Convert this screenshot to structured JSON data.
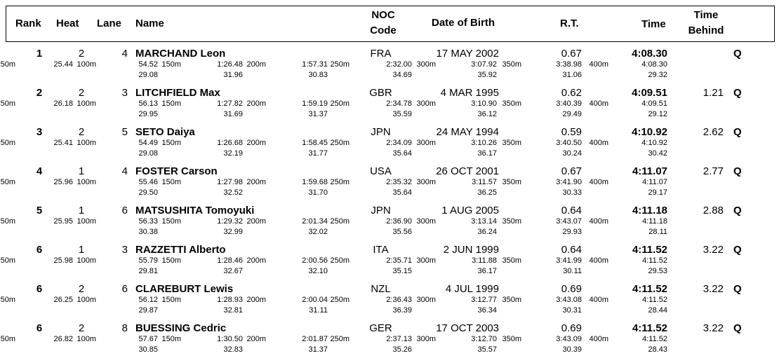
{
  "header": {
    "rank": "Rank",
    "heat": "Heat",
    "lane": "Lane",
    "name": "Name",
    "noc1": "NOC",
    "noc2": "Code",
    "dob": "Date of Birth",
    "rt": "R.T.",
    "time": "Time",
    "behind1": "Time",
    "behind2": "Behind"
  },
  "rows": [
    {
      "rank": "1",
      "heat": "2",
      "lane": "4",
      "name": "MARCHAND Leon",
      "noc": "FRA",
      "dob": "17 MAY 2002",
      "rt": "0.67",
      "time": "4:08.30",
      "behind": "",
      "q": "Q",
      "splits": [
        {
          "d": "50m",
          "t": "25.44",
          "i": ""
        },
        {
          "d": "100m",
          "t": "54.52",
          "i": "29.08"
        },
        {
          "d": "150m",
          "t": "1:26.48",
          "i": "31.96"
        },
        {
          "d": "200m",
          "t": "1:57.31",
          "i": "30.83"
        },
        {
          "d": "250m",
          "t": "2:32.00",
          "i": "34.69"
        },
        {
          "d": "300m",
          "t": "3:07.92",
          "i": "35.92"
        },
        {
          "d": "350m",
          "t": "3:38.98",
          "i": "31.06"
        },
        {
          "d": "400m",
          "t": "4:08.30",
          "i": "29.32"
        }
      ]
    },
    {
      "rank": "2",
      "heat": "2",
      "lane": "3",
      "name": "LITCHFIELD Max",
      "noc": "GBR",
      "dob": "4 MAR 1995",
      "rt": "0.62",
      "time": "4:09.51",
      "behind": "1.21",
      "q": "Q",
      "splits": [
        {
          "d": "50m",
          "t": "26.18",
          "i": ""
        },
        {
          "d": "100m",
          "t": "56.13",
          "i": "29.95"
        },
        {
          "d": "150m",
          "t": "1:27.82",
          "i": "31.69"
        },
        {
          "d": "200m",
          "t": "1:59.19",
          "i": "31.37"
        },
        {
          "d": "250m",
          "t": "2:34.78",
          "i": "35.59"
        },
        {
          "d": "300m",
          "t": "3:10.90",
          "i": "36.12"
        },
        {
          "d": "350m",
          "t": "3:40.39",
          "i": "29.49"
        },
        {
          "d": "400m",
          "t": "4:09.51",
          "i": "29.12"
        }
      ]
    },
    {
      "rank": "3",
      "heat": "2",
      "lane": "5",
      "name": "SETO Daiya",
      "noc": "JPN",
      "dob": "24 MAY 1994",
      "rt": "0.59",
      "time": "4:10.92",
      "behind": "2.62",
      "q": "Q",
      "splits": [
        {
          "d": "50m",
          "t": "25.41",
          "i": ""
        },
        {
          "d": "100m",
          "t": "54.49",
          "i": "29.08"
        },
        {
          "d": "150m",
          "t": "1:26.68",
          "i": "32.19"
        },
        {
          "d": "200m",
          "t": "1:58.45",
          "i": "31.77"
        },
        {
          "d": "250m",
          "t": "2:34.09",
          "i": "35.64"
        },
        {
          "d": "300m",
          "t": "3:10.26",
          "i": "36.17"
        },
        {
          "d": "350m",
          "t": "3:40.50",
          "i": "30.24"
        },
        {
          "d": "400m",
          "t": "4:10.92",
          "i": "30.42"
        }
      ]
    },
    {
      "rank": "4",
      "heat": "1",
      "lane": "4",
      "name": "FOSTER Carson",
      "noc": "USA",
      "dob": "26 OCT 2001",
      "rt": "0.67",
      "time": "4:11.07",
      "behind": "2.77",
      "q": "Q",
      "splits": [
        {
          "d": "50m",
          "t": "25.96",
          "i": ""
        },
        {
          "d": "100m",
          "t": "55.46",
          "i": "29.50"
        },
        {
          "d": "150m",
          "t": "1:27.98",
          "i": "32.52"
        },
        {
          "d": "200m",
          "t": "1:59.68",
          "i": "31.70"
        },
        {
          "d": "250m",
          "t": "2:35.32",
          "i": "35.64"
        },
        {
          "d": "300m",
          "t": "3:11.57",
          "i": "36.25"
        },
        {
          "d": "350m",
          "t": "3:41.90",
          "i": "30.33"
        },
        {
          "d": "400m",
          "t": "4:11.07",
          "i": "29.17"
        }
      ]
    },
    {
      "rank": "5",
      "heat": "1",
      "lane": "6",
      "name": "MATSUSHITA Tomoyuki",
      "noc": "JPN",
      "dob": "1 AUG 2005",
      "rt": "0.64",
      "time": "4:11.18",
      "behind": "2.88",
      "q": "Q",
      "splits": [
        {
          "d": "50m",
          "t": "25.95",
          "i": ""
        },
        {
          "d": "100m",
          "t": "56.33",
          "i": "30.38"
        },
        {
          "d": "150m",
          "t": "1:29.32",
          "i": "32.99"
        },
        {
          "d": "200m",
          "t": "2:01.34",
          "i": "32.02"
        },
        {
          "d": "250m",
          "t": "2:36.90",
          "i": "35.56"
        },
        {
          "d": "300m",
          "t": "3:13.14",
          "i": "36.24"
        },
        {
          "d": "350m",
          "t": "3:43.07",
          "i": "29.93"
        },
        {
          "d": "400m",
          "t": "4:11.18",
          "i": "28.11"
        }
      ]
    },
    {
      "rank": "6",
      "heat": "1",
      "lane": "3",
      "name": "RAZZETTI Alberto",
      "noc": "ITA",
      "dob": "2 JUN 1999",
      "rt": "0.64",
      "time": "4:11.52",
      "behind": "3.22",
      "q": "Q",
      "splits": [
        {
          "d": "50m",
          "t": "25.98",
          "i": ""
        },
        {
          "d": "100m",
          "t": "55.79",
          "i": "29.81"
        },
        {
          "d": "150m",
          "t": "1:28.46",
          "i": "32.67"
        },
        {
          "d": "200m",
          "t": "2:00.56",
          "i": "32.10"
        },
        {
          "d": "250m",
          "t": "2:35.71",
          "i": "35.15"
        },
        {
          "d": "300m",
          "t": "3:11.88",
          "i": "36.17"
        },
        {
          "d": "350m",
          "t": "3:41.99",
          "i": "30.11"
        },
        {
          "d": "400m",
          "t": "4:11.52",
          "i": "29.53"
        }
      ]
    },
    {
      "rank": "6",
      "heat": "2",
      "lane": "6",
      "name": "CLAREBURT Lewis",
      "noc": "NZL",
      "dob": "4 JUL 1999",
      "rt": "0.69",
      "time": "4:11.52",
      "behind": "3.22",
      "q": "Q",
      "splits": [
        {
          "d": "50m",
          "t": "26.25",
          "i": ""
        },
        {
          "d": "100m",
          "t": "56.12",
          "i": "29.87"
        },
        {
          "d": "150m",
          "t": "1:28.93",
          "i": "32.81"
        },
        {
          "d": "200m",
          "t": "2:00.04",
          "i": "31.11"
        },
        {
          "d": "250m",
          "t": "2:36.43",
          "i": "36.39"
        },
        {
          "d": "300m",
          "t": "3:12.77",
          "i": "36.34"
        },
        {
          "d": "350m",
          "t": "3:43.08",
          "i": "30.31"
        },
        {
          "d": "400m",
          "t": "4:11.52",
          "i": "28.44"
        }
      ]
    },
    {
      "rank": "6",
      "heat": "2",
      "lane": "8",
      "name": "BUESSING Cedric",
      "noc": "GER",
      "dob": "17 OCT 2003",
      "rt": "0.69",
      "time": "4:11.52",
      "behind": "3.22",
      "q": "Q",
      "splits": [
        {
          "d": "50m",
          "t": "26.82",
          "i": ""
        },
        {
          "d": "100m",
          "t": "57.67",
          "i": "30.85"
        },
        {
          "d": "150m",
          "t": "1:30.50",
          "i": "32.83"
        },
        {
          "d": "200m",
          "t": "2:01.87",
          "i": "31.37"
        },
        {
          "d": "250m",
          "t": "2:37.13",
          "i": "35.26"
        },
        {
          "d": "300m",
          "t": "3:12.70",
          "i": "35.57"
        },
        {
          "d": "350m",
          "t": "3:43.09",
          "i": "30.39"
        },
        {
          "d": "400m",
          "t": "4:11.52",
          "i": "28.43"
        }
      ]
    }
  ]
}
